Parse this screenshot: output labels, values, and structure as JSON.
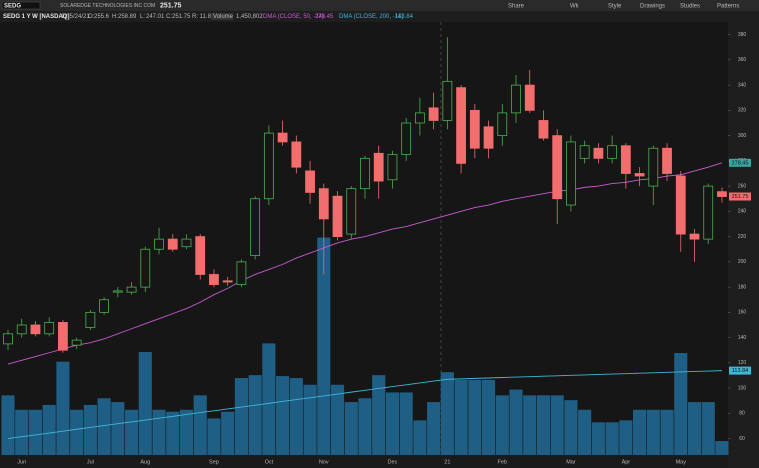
{
  "header": {
    "symbol": "SEDG",
    "company": "SOLAREDGE TECHNOLOGIES INC COM",
    "title": "SEDG 1 Y W [NASDAQ]",
    "date": "D: 5/24/21",
    "ohlc_labels": [
      "O:",
      "H:",
      "L:",
      "C:"
    ],
    "range": "R: 11.88",
    "volume_label": "Volume",
    "volume": "1,450,802"
  },
  "toolbar": [
    "Share",
    "Wk",
    "Style",
    "Drawings",
    "Studies",
    "Patterns"
  ],
  "chart_data": {
    "type": "candlestick",
    "categories": [
      null,
      "Jun",
      null,
      null,
      null,
      null,
      "Jul",
      null,
      null,
      null,
      "Aug",
      null,
      null,
      null,
      null,
      "Sep",
      null,
      null,
      null,
      "Oct",
      null,
      null,
      null,
      "Nov",
      null,
      null,
      null,
      null,
      "Dec",
      null,
      null,
      null,
      "21",
      null,
      null,
      null,
      "Feb",
      null,
      null,
      null,
      null,
      "Mar",
      null,
      null,
      null,
      "Apr",
      null,
      null,
      null,
      "May",
      null,
      null,
      null
    ],
    "open": [
      135,
      143,
      150,
      143,
      152,
      134,
      148,
      160,
      176,
      176,
      180,
      210,
      218,
      212,
      220,
      190,
      185,
      182,
      205,
      250,
      302,
      295,
      272,
      258,
      252,
      222,
      258,
      286,
      265,
      285,
      310,
      322,
      312,
      338,
      320,
      307,
      300,
      318,
      340,
      312,
      300,
      245,
      282,
      290,
      282,
      292,
      270,
      260,
      290,
      268,
      222,
      218,
      255.6
    ],
    "high": [
      146,
      155,
      153,
      156,
      154,
      140,
      162,
      172,
      180,
      184,
      212,
      227,
      222,
      222,
      222,
      194,
      188,
      202,
      252,
      308,
      312,
      300,
      280,
      262,
      256,
      260,
      284,
      292,
      288,
      314,
      330,
      334,
      378,
      340,
      325,
      312,
      325,
      348,
      352,
      320,
      305,
      300,
      296,
      294,
      300,
      294,
      275,
      292,
      294,
      272,
      226,
      262,
      258.89
    ],
    "low": [
      130,
      140,
      141,
      141,
      128,
      131,
      146,
      158,
      172,
      174,
      176,
      206,
      208,
      210,
      186,
      180,
      181,
      180,
      202,
      245,
      292,
      270,
      246,
      190,
      217,
      218,
      250,
      250,
      258,
      280,
      300,
      305,
      305,
      270,
      282,
      282,
      292,
      310,
      318,
      296,
      230,
      240,
      278,
      278,
      278,
      258,
      260,
      245,
      264,
      208,
      200,
      214,
      247.01
    ],
    "close": [
      143,
      150,
      143,
      152,
      130,
      138,
      160,
      170,
      177,
      180,
      210,
      218,
      210,
      218,
      190,
      182,
      184,
      200,
      250,
      302,
      295,
      275,
      255,
      234,
      220,
      258,
      282,
      264,
      285,
      310,
      318,
      312,
      343,
      278,
      290,
      290,
      318,
      340,
      320,
      298,
      250,
      295,
      292,
      282,
      292,
      270,
      268,
      290,
      270,
      222,
      218,
      260,
      251.75
    ],
    "up_color": "#4caf50",
    "down_color": "#f26d6d",
    "volume": {
      "color": "#1f5f86",
      "ylim": [
        0,
        45000000
      ],
      "values": [
        6200000,
        4700000,
        4700000,
        5200000,
        9700000,
        4700000,
        5200000,
        5900000,
        5500000,
        4700000,
        10700000,
        4700000,
        4500000,
        4700000,
        6200000,
        3800000,
        4500000,
        8000000,
        8300000,
        11600000,
        8200000,
        8000000,
        7300000,
        22600000,
        7300000,
        5500000,
        5900000,
        8300000,
        6500000,
        6500000,
        3600000,
        5500000,
        8600000,
        7800000,
        7800000,
        7800000,
        6200000,
        6800000,
        6200000,
        6200000,
        6200000,
        5700000,
        4700000,
        3400000,
        3400000,
        3600000,
        4700000,
        4700000,
        4700000,
        10600000,
        5500000,
        5500000,
        1450802
      ]
    },
    "series": [
      {
        "name": "DMA (CLOSE, 50, -14)",
        "color": "#c75bd1",
        "values": [
          119,
          122,
          125,
          128,
          131,
          134,
          136,
          139,
          143,
          147,
          151,
          155,
          159,
          163,
          168,
          174,
          179,
          185,
          190,
          194,
          198,
          203,
          207,
          211,
          215,
          218,
          220,
          223,
          226,
          228,
          231,
          234,
          237,
          240,
          243,
          245,
          248,
          250,
          252,
          254,
          256,
          257,
          259,
          260,
          262,
          263,
          265,
          266,
          268,
          269,
          272,
          275,
          278.45
        ]
      },
      {
        "name": "DMA (CLOSE, 200, -14)",
        "color": "#3fb6d6",
        "values": [
          60,
          61.5,
          62.9,
          64.4,
          65.9,
          67.4,
          68.8,
          70.3,
          71.8,
          73.2,
          74.7,
          76.2,
          77.6,
          79.1,
          80.6,
          82,
          83.5,
          85,
          86.5,
          87.9,
          89.4,
          90.9,
          92.3,
          93.8,
          95.3,
          96.8,
          98.2,
          99.7,
          101.2,
          102.6,
          104.1,
          105.6,
          107,
          107.3,
          107.7,
          108,
          108.4,
          108.7,
          109,
          109.4,
          109.7,
          110.1,
          110.4,
          110.8,
          111.1,
          111.4,
          111.8,
          112.1,
          112.5,
          112.8,
          113.2,
          113.5,
          113.84
        ]
      }
    ],
    "ylim": [
      47,
      390
    ],
    "yticks": [
      60,
      80,
      100,
      120,
      140,
      160,
      180,
      200,
      220,
      240,
      260,
      280,
      300,
      320,
      340,
      360,
      380
    ],
    "grid": false
  }
}
